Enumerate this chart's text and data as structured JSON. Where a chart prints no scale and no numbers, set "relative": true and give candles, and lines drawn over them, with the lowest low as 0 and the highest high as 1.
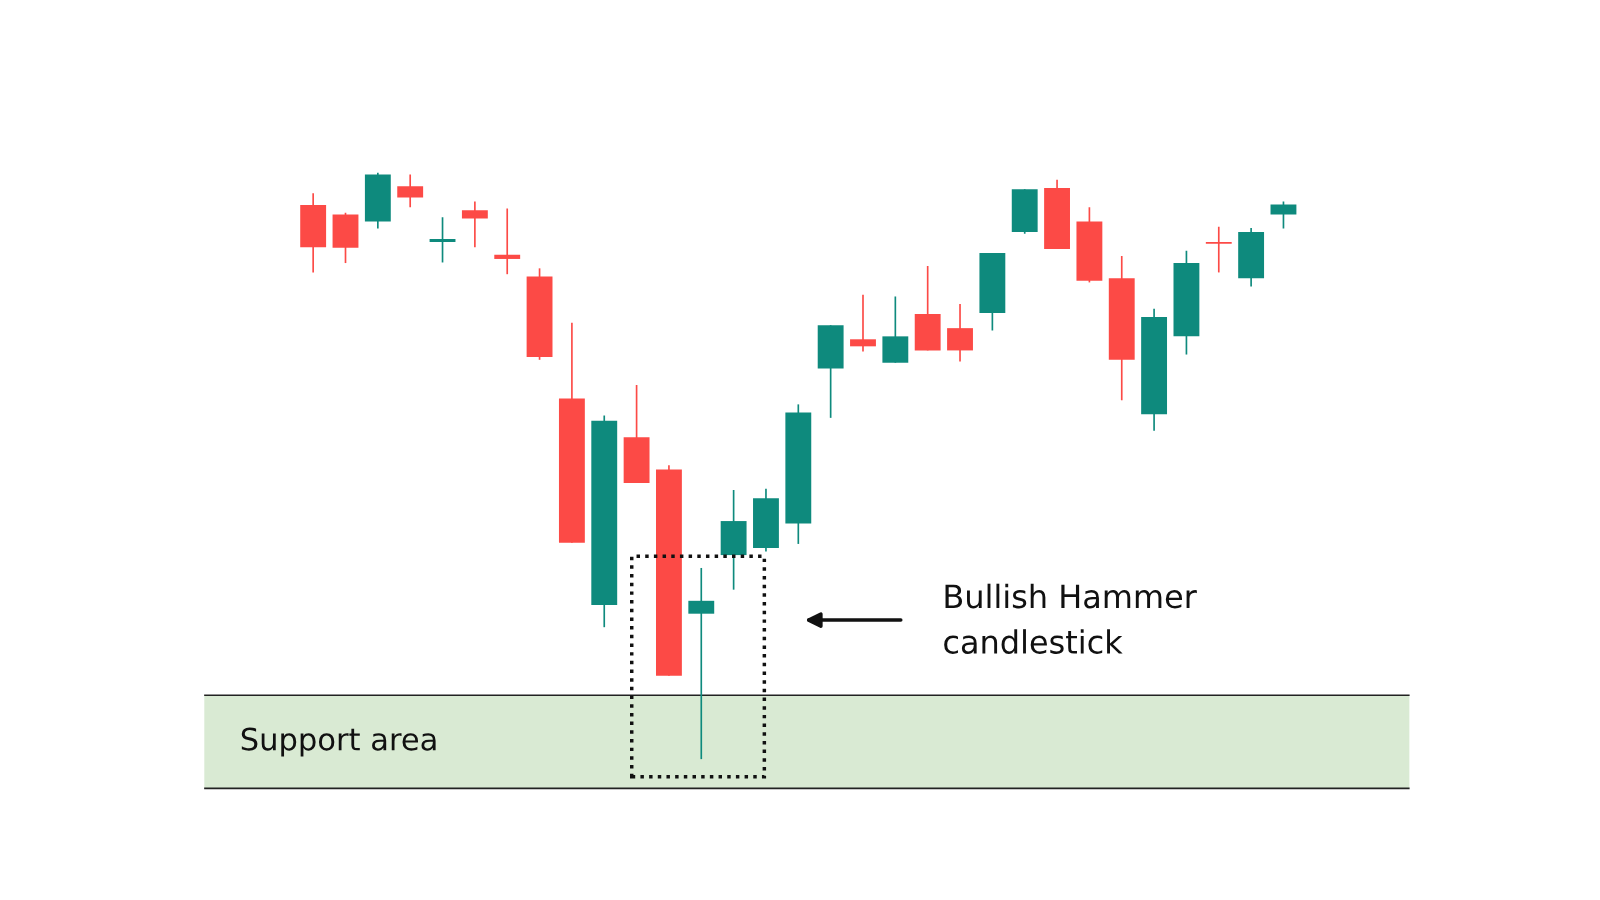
{
  "chart_data": {
    "type": "candlestick",
    "relative": true,
    "categories": [
      null,
      null,
      null,
      null,
      null,
      null,
      null,
      null,
      null,
      null,
      null,
      null,
      null,
      null,
      null,
      null,
      null,
      null,
      null,
      null,
      null,
      null,
      null,
      null,
      null,
      null,
      null,
      null,
      null,
      null,
      null
    ],
    "ohlc": [
      [
        0.945,
        0.965,
        0.83,
        0.873
      ],
      [
        0.929,
        0.932,
        0.846,
        0.872
      ],
      [
        0.917,
        1.0,
        0.905,
        0.997
      ],
      [
        0.977,
        0.997,
        0.941,
        0.958
      ],
      [
        0.882,
        0.924,
        0.847,
        0.887
      ],
      [
        0.936,
        0.951,
        0.873,
        0.922
      ],
      [
        0.86,
        0.939,
        0.827,
        0.853
      ],
      [
        0.823,
        0.837,
        0.681,
        0.686
      ],
      [
        0.615,
        0.744,
        0.369,
        0.369
      ],
      [
        0.263,
        0.586,
        0.225,
        0.577
      ],
      [
        0.549,
        0.638,
        0.471,
        0.471
      ],
      [
        0.494,
        0.501,
        0.142,
        0.142
      ],
      [
        0.248,
        0.326,
        0.0,
        0.27
      ],
      [
        0.348,
        0.459,
        0.289,
        0.406
      ],
      [
        0.36,
        0.461,
        0.354,
        0.445
      ],
      [
        0.402,
        0.605,
        0.367,
        0.591
      ],
      [
        0.666,
        0.74,
        0.582,
        0.74
      ],
      [
        0.716,
        0.792,
        0.695,
        0.704
      ],
      [
        0.676,
        0.789,
        0.676,
        0.721
      ],
      [
        0.759,
        0.841,
        0.697,
        0.697
      ],
      [
        0.735,
        0.776,
        0.678,
        0.697
      ],
      [
        0.761,
        0.863,
        0.731,
        0.863
      ],
      [
        0.899,
        0.972,
        0.896,
        0.972
      ],
      [
        0.974,
        0.988,
        0.87,
        0.87
      ],
      [
        0.917,
        0.941,
        0.813,
        0.816
      ],
      [
        0.82,
        0.858,
        0.612,
        0.681
      ],
      [
        0.588,
        0.768,
        0.56,
        0.754
      ],
      [
        0.721,
        0.867,
        0.69,
        0.846
      ],
      [
        0.882,
        0.908,
        0.83,
        0.879
      ],
      [
        0.82,
        0.906,
        0.806,
        0.899
      ],
      [
        0.929,
        0.951,
        0.905,
        0.946
      ]
    ],
    "colors": [
      "#fc4a46",
      "#fc4a46",
      "#0e8a7d",
      "#fc4a46",
      "#0e8a7d",
      "#fc4a46",
      "#fc4a46",
      "#fc4a46",
      "#fc4a46",
      "#0e8a7d",
      "#fc4a46",
      "#fc4a46",
      "#0e8a7d",
      "#0e8a7d",
      "#0e8a7d",
      "#0e8a7d",
      "#0e8a7d",
      "#fc4a46",
      "#0e8a7d",
      "#fc4a46",
      "#fc4a46",
      "#0e8a7d",
      "#0e8a7d",
      "#fc4a46",
      "#fc4a46",
      "#fc4a46",
      "#0e8a7d",
      "#0e8a7d",
      "#fc4a46",
      "#0e8a7d",
      "#0e8a7d"
    ],
    "bands": [
      {
        "axis": "y",
        "from": -0.05,
        "to": 0.109,
        "label": "Support area",
        "color": "#d9ead3"
      }
    ],
    "ref_lines": [
      {
        "axis": "y",
        "value": 0.109,
        "color": "#222222",
        "line_style": "solid"
      },
      {
        "axis": "y",
        "value": -0.05,
        "color": "#222222",
        "line_style": "solid"
      }
    ],
    "annotations": [
      "Bullish Hammer\ncandlestick"
    ],
    "grid": false
  }
}
